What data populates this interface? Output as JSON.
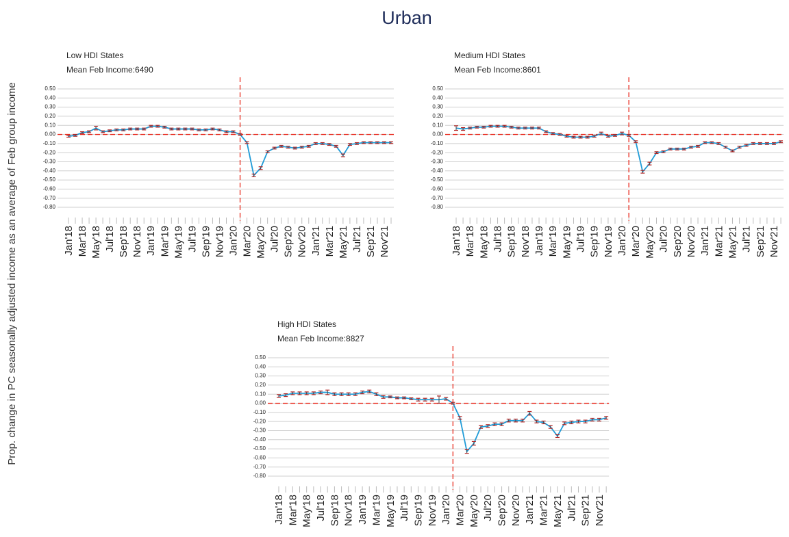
{
  "title": "Urban",
  "y_label": "Prop. change in PC seasonally adjusted income as an average of Feb group income",
  "chart_data": [
    {
      "type": "line",
      "title": "Low HDI States",
      "subtitle": "Mean Feb Income:6490",
      "categories": [
        "Jan'18",
        null,
        "Mar'18",
        null,
        "May'18",
        null,
        "Jul'18",
        null,
        "Sep'18",
        null,
        "Nov'18",
        null,
        "Jan'19",
        null,
        "Mar'19",
        null,
        "May'19",
        null,
        "Jul'19",
        null,
        "Sep'19",
        null,
        "Nov'19",
        null,
        "Jan'20",
        null,
        "Mar'20",
        null,
        "May'20",
        null,
        "Jul'20",
        null,
        "Sep'20",
        null,
        "Nov'20",
        null,
        "Jan'21",
        null,
        "Mar'21",
        null,
        "May'21",
        null,
        "Jul'21",
        null,
        "Sep'21",
        null,
        "Nov'21",
        null
      ],
      "series": [
        {
          "color": "#1f9bd7",
          "values": [
            -0.02,
            -0.01,
            0.02,
            0.03,
            0.07,
            0.03,
            0.04,
            0.05,
            0.05,
            0.06,
            0.06,
            0.06,
            0.09,
            0.09,
            0.08,
            0.06,
            0.06,
            0.06,
            0.06,
            0.05,
            0.05,
            0.06,
            0.05,
            0.03,
            0.03,
            0.0,
            -0.09,
            -0.45,
            -0.37,
            -0.19,
            -0.15,
            -0.13,
            -0.14,
            -0.15,
            -0.14,
            -0.13,
            -0.1,
            -0.1,
            -0.11,
            -0.13,
            -0.23,
            -0.11,
            -0.1,
            -0.09,
            -0.09,
            -0.09,
            -0.09,
            -0.09
          ],
          "errors": [
            0.01,
            0.01,
            0.01,
            0.01,
            0.02,
            0.01,
            0.01,
            0.01,
            0.01,
            0.01,
            0.01,
            0.01,
            0.01,
            0.01,
            0.01,
            0.01,
            0.01,
            0.01,
            0.01,
            0.01,
            0.01,
            0.01,
            0.01,
            0.01,
            0.01,
            0.01,
            0.01,
            0.015,
            0.015,
            0.01,
            0.01,
            0.01,
            0.01,
            0.01,
            0.01,
            0.01,
            0.01,
            0.01,
            0.01,
            0.01,
            0.015,
            0.01,
            0.01,
            0.01,
            0.01,
            0.01,
            0.01,
            0.01
          ]
        }
      ],
      "ylim": [
        -0.8,
        0.5
      ],
      "yticks": [
        {
          "value": 0.5,
          "label": "0.50"
        },
        {
          "value": 0.4,
          "label": "0.40"
        },
        {
          "value": 0.3,
          "label": "0.30"
        },
        {
          "value": 0.2,
          "label": "0.20"
        },
        {
          "value": 0.1,
          "label": "0.10"
        },
        {
          "value": 0,
          "label": "0.00"
        },
        {
          "value": -0.1,
          "label": "-0.10"
        },
        {
          "value": -0.2,
          "label": "-0.20"
        },
        {
          "value": -0.3,
          "label": "-0.30"
        },
        {
          "value": -0.4,
          "label": "-0.40"
        },
        {
          "value": -0.5,
          "label": "-0.50"
        },
        {
          "value": -0.6,
          "label": "-0.60"
        },
        {
          "value": -0.7,
          "label": "-0.70"
        },
        {
          "value": -0.8,
          "label": "-0.80"
        }
      ],
      "grid": true,
      "hline": 0,
      "vline": 25,
      "ref_color": "#e8291c",
      "error_color": "#b22222"
    },
    {
      "type": "line",
      "title": "Medium HDI States",
      "subtitle": "Mean Feb Income:8601",
      "categories": [
        "Jan'18",
        null,
        "Mar'18",
        null,
        "May'18",
        null,
        "Jul'18",
        null,
        "Sep'18",
        null,
        "Nov'18",
        null,
        "Jan'19",
        null,
        "Mar'19",
        null,
        "May'19",
        null,
        "Jul'19",
        null,
        "Sep'19",
        null,
        "Nov'19",
        null,
        "Jan'20",
        null,
        "Mar'20",
        null,
        "May'20",
        null,
        "Jul'20",
        null,
        "Sep'20",
        null,
        "Nov'20",
        null,
        "Jan'21",
        null,
        "Mar'21",
        null,
        "May'21",
        null,
        "Jul'21",
        null,
        "Sep'21",
        null,
        "Nov'21",
        null
      ],
      "series": [
        {
          "color": "#1f9bd7",
          "values": [
            0.07,
            0.06,
            0.07,
            0.08,
            0.08,
            0.09,
            0.09,
            0.09,
            0.08,
            0.07,
            0.07,
            0.07,
            0.07,
            0.03,
            0.01,
            0.0,
            -0.02,
            -0.03,
            -0.03,
            -0.03,
            -0.02,
            0.01,
            -0.02,
            -0.01,
            0.01,
            -0.01,
            -0.08,
            -0.41,
            -0.32,
            -0.2,
            -0.19,
            -0.16,
            -0.16,
            -0.16,
            -0.14,
            -0.13,
            -0.09,
            -0.09,
            -0.1,
            -0.14,
            -0.18,
            -0.14,
            -0.12,
            -0.1,
            -0.1,
            -0.1,
            -0.1,
            -0.08
          ],
          "errors": [
            0.025,
            0.015,
            0.01,
            0.01,
            0.01,
            0.01,
            0.01,
            0.01,
            0.01,
            0.01,
            0.01,
            0.01,
            0.01,
            0.01,
            0.01,
            0.01,
            0.01,
            0.01,
            0.01,
            0.01,
            0.01,
            0.015,
            0.01,
            0.01,
            0.015,
            0.01,
            0.01,
            0.015,
            0.015,
            0.01,
            0.01,
            0.01,
            0.01,
            0.01,
            0.01,
            0.01,
            0.01,
            0.01,
            0.01,
            0.01,
            0.01,
            0.01,
            0.01,
            0.01,
            0.01,
            0.01,
            0.01,
            0.01
          ]
        }
      ],
      "ylim": [
        -0.8,
        0.5
      ],
      "yticks": [
        {
          "value": 0.5,
          "label": "0.50"
        },
        {
          "value": 0.4,
          "label": "0.40"
        },
        {
          "value": 0.3,
          "label": "0.30"
        },
        {
          "value": 0.2,
          "label": "0.20"
        },
        {
          "value": 0.1,
          "label": "0.10"
        },
        {
          "value": 0,
          "label": "0.00"
        },
        {
          "value": -0.1,
          "label": "-0.10"
        },
        {
          "value": -0.2,
          "label": "-0.20"
        },
        {
          "value": -0.3,
          "label": "-0.30"
        },
        {
          "value": -0.4,
          "label": "-0.40"
        },
        {
          "value": -0.5,
          "label": "-0.50"
        },
        {
          "value": -0.6,
          "label": "-0.60"
        },
        {
          "value": -0.7,
          "label": "-0.70"
        },
        {
          "value": -0.8,
          "label": "-0.80"
        }
      ],
      "grid": true,
      "hline": 0,
      "vline": 25,
      "ref_color": "#e8291c",
      "error_color": "#b22222"
    },
    {
      "type": "line",
      "title": "High HDI States",
      "subtitle": "Mean Feb Income:8827",
      "categories": [
        "Jan'18",
        null,
        "Mar'18",
        null,
        "May'18",
        null,
        "Jul'18",
        null,
        "Sep'18",
        null,
        "Nov'18",
        null,
        "Jan'19",
        null,
        "Mar'19",
        null,
        "May'19",
        null,
        "Jul'19",
        null,
        "Sep'19",
        null,
        "Nov'19",
        null,
        "Jan'20",
        null,
        "Mar'20",
        null,
        "May'20",
        null,
        "Jul'20",
        null,
        "Sep'20",
        null,
        "Nov'20",
        null,
        "Jan'21",
        null,
        "Mar'21",
        null,
        "May'21",
        null,
        "Jul'21",
        null,
        "Sep'21",
        null,
        "Nov'21",
        null
      ],
      "series": [
        {
          "color": "#1f9bd7",
          "values": [
            0.08,
            0.09,
            0.11,
            0.11,
            0.11,
            0.11,
            0.12,
            0.12,
            0.1,
            0.1,
            0.1,
            0.1,
            0.12,
            0.13,
            0.1,
            0.07,
            0.07,
            0.06,
            0.06,
            0.05,
            0.04,
            0.04,
            0.04,
            0.04,
            0.05,
            0.0,
            -0.16,
            -0.53,
            -0.44,
            -0.26,
            -0.25,
            -0.23,
            -0.23,
            -0.19,
            -0.19,
            -0.19,
            -0.11,
            -0.2,
            -0.21,
            -0.26,
            -0.36,
            -0.22,
            -0.21,
            -0.2,
            -0.2,
            -0.18,
            -0.18,
            -0.16
          ],
          "errors": [
            0.015,
            0.015,
            0.015,
            0.015,
            0.015,
            0.015,
            0.015,
            0.025,
            0.015,
            0.015,
            0.015,
            0.015,
            0.015,
            0.015,
            0.015,
            0.015,
            0.01,
            0.01,
            0.01,
            0.01,
            0.015,
            0.015,
            0.015,
            0.04,
            0.015,
            0.01,
            0.015,
            0.02,
            0.02,
            0.015,
            0.015,
            0.015,
            0.015,
            0.015,
            0.015,
            0.015,
            0.02,
            0.015,
            0.015,
            0.015,
            0.015,
            0.015,
            0.015,
            0.015,
            0.015,
            0.015,
            0.015,
            0.015
          ]
        }
      ],
      "ylim": [
        -0.8,
        0.5
      ],
      "yticks": [
        {
          "value": 0.5,
          "label": "0.50"
        },
        {
          "value": 0.4,
          "label": "0.40"
        },
        {
          "value": 0.3,
          "label": "0.30"
        },
        {
          "value": 0.2,
          "label": "0.20"
        },
        {
          "value": 0.1,
          "label": "0.10"
        },
        {
          "value": 0,
          "label": "0.00"
        },
        {
          "value": -0.1,
          "label": "-0.10"
        },
        {
          "value": -0.2,
          "label": "-0.20"
        },
        {
          "value": -0.3,
          "label": "-0.30"
        },
        {
          "value": -0.4,
          "label": "-0.40"
        },
        {
          "value": -0.5,
          "label": "-0.50"
        },
        {
          "value": -0.6,
          "label": "-0.60"
        },
        {
          "value": -0.7,
          "label": "-0.70"
        },
        {
          "value": -0.8,
          "label": "-0.80"
        }
      ],
      "grid": true,
      "hline": 0,
      "vline": 25,
      "ref_color": "#e8291c",
      "error_color": "#b22222"
    }
  ]
}
